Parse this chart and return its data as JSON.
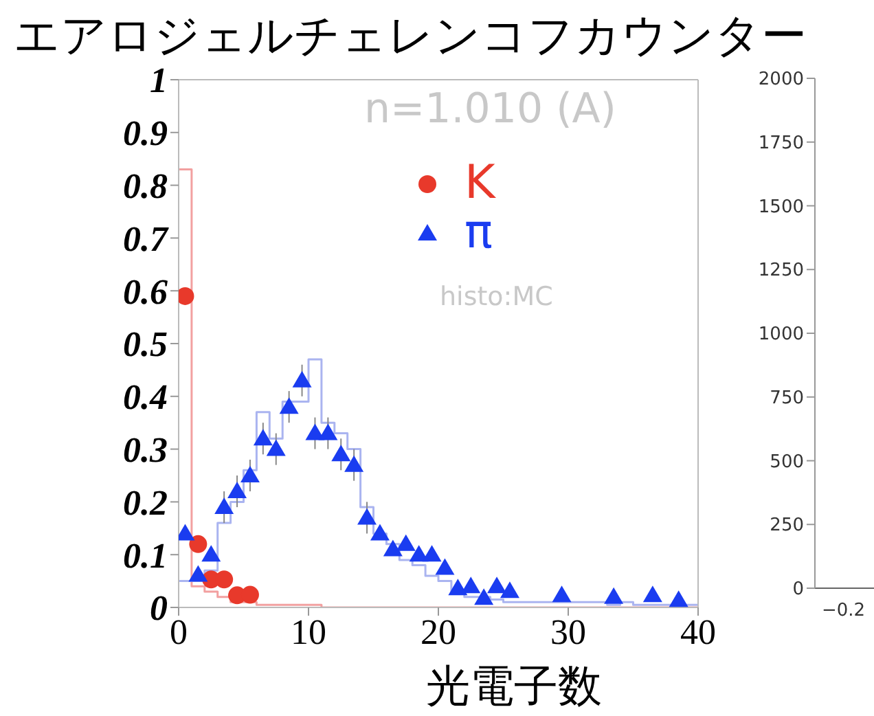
{
  "chart_data": [
    {
      "type": "scatter",
      "title": "エアロジェルチェレンコフカウンター",
      "xlabel": "光電子数",
      "annotations": [
        "n=1.010 (A)",
        "histo:MC"
      ],
      "xlim": [
        0,
        40
      ],
      "xticks": [
        0,
        10,
        20,
        30,
        40
      ],
      "ylim": [
        0,
        1
      ],
      "yticks": [
        0,
        0.1,
        0.2,
        0.3,
        0.4,
        0.5,
        0.6,
        0.7,
        0.8,
        0.9,
        1
      ],
      "legend": "top",
      "series": [
        {
          "type": "step",
          "color": "#f2a0a0",
          "x": [
            0,
            1,
            2,
            3,
            4,
            5,
            6,
            7,
            8,
            9,
            10,
            11,
            12,
            13,
            14,
            15,
            16,
            17,
            18,
            19,
            20,
            21,
            22,
            23,
            24,
            25,
            26,
            27,
            28,
            29,
            30,
            31,
            32,
            33,
            34,
            35,
            36,
            37,
            38,
            39,
            40
          ],
          "values": [
            0.83,
            0.04,
            0.03,
            0.02,
            0.01,
            0.01,
            0.005,
            0.005,
            0.005,
            0.005,
            0.005,
            0,
            0,
            0,
            0,
            0,
            0,
            0,
            0,
            0,
            0,
            0,
            0,
            0,
            0,
            0,
            0,
            0,
            0,
            0,
            0,
            0,
            0,
            0,
            0,
            0,
            0,
            0,
            0,
            0,
            0
          ]
        },
        {
          "type": "step",
          "color": "#aab4f0",
          "x": [
            0,
            1,
            2,
            3,
            4,
            5,
            6,
            7,
            8,
            9,
            10,
            11,
            12,
            13,
            14,
            15,
            16,
            17,
            18,
            19,
            20,
            21,
            22,
            23,
            24,
            25,
            26,
            27,
            28,
            29,
            30,
            31,
            32,
            33,
            34,
            35,
            36,
            37,
            38,
            39,
            40
          ],
          "values": [
            0.05,
            0.05,
            0.07,
            0.16,
            0.2,
            0.26,
            0.37,
            0.32,
            0.39,
            0.39,
            0.47,
            0.35,
            0.33,
            0.3,
            0.19,
            0.14,
            0.12,
            0.09,
            0.08,
            0.06,
            0.05,
            0.03,
            0.02,
            0.02,
            0.015,
            0.01,
            0.01,
            0.01,
            0.01,
            0.01,
            0.01,
            0.01,
            0.01,
            0.005,
            0.01,
            0.005,
            0.005,
            0.005,
            0.005,
            0.005,
            0.005
          ]
        },
        {
          "name": "K",
          "marker": "circle",
          "color": "#e8392b",
          "x": [
            0.5,
            1.5,
            2.5,
            3.5,
            4.5,
            5.5
          ],
          "values": [
            0.59,
            0.12,
            0.053,
            0.053,
            0.023,
            0.024
          ]
        },
        {
          "name": "π",
          "marker": "triangle",
          "color": "#1a3cf0",
          "x": [
            0.5,
            1.5,
            2.5,
            3.5,
            4.5,
            5.5,
            6.5,
            7.5,
            8.5,
            9.5,
            10.5,
            11.5,
            12.5,
            13.5,
            14.5,
            15.5,
            16.5,
            17.5,
            18.5,
            19.5,
            20.5,
            21.5,
            22.5,
            23.5,
            24.5,
            25.5,
            29.5,
            33.5,
            36.5,
            38.5
          ],
          "values": [
            0.14,
            0.062,
            0.1,
            0.19,
            0.22,
            0.25,
            0.32,
            0.3,
            0.38,
            0.43,
            0.33,
            0.33,
            0.29,
            0.27,
            0.17,
            0.14,
            0.11,
            0.12,
            0.1,
            0.1,
            0.075,
            0.036,
            0.04,
            0.018,
            0.04,
            0.031,
            0.023,
            0.02,
            0.023,
            0.014
          ],
          "errors": [
            null,
            null,
            null,
            0.03,
            0.03,
            0.03,
            0.03,
            0.03,
            0.03,
            0.03,
            0.03,
            0.03,
            0.03,
            0.03,
            0.03,
            null,
            null,
            null,
            null,
            null,
            null,
            null,
            null,
            null,
            null,
            null,
            null,
            null,
            null,
            null
          ]
        }
      ]
    },
    {
      "type": "line",
      "categories": [
        null,
        null
      ],
      "series": [
        {
          "values": [
            null,
            null
          ]
        }
      ],
      "ylim": [
        0,
        2000
      ],
      "yticks": [
        0,
        250,
        500,
        750,
        1000,
        1250,
        1500,
        1750,
        2000
      ],
      "annotations": [
        "−0.2"
      ]
    }
  ]
}
